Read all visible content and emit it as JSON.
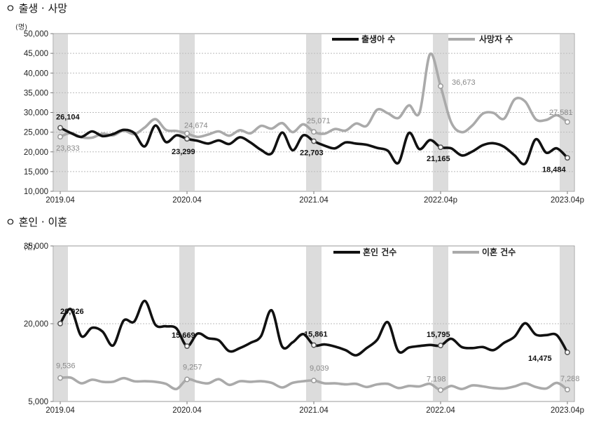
{
  "chart_data": [
    {
      "type": "line",
      "title": "ㅇ 출생 · 사망",
      "unit": "(명)",
      "ylim": [
        10000,
        50000
      ],
      "yticks": [
        10000,
        15000,
        20000,
        25000,
        30000,
        35000,
        40000,
        45000,
        50000
      ],
      "ytick_labels": [
        "10,000",
        "15,000",
        "20,000",
        "25,000",
        "30,000",
        "35,000",
        "40,000",
        "45,000",
        "50,000"
      ],
      "xtick_labels": [
        "2019.04",
        "2020.04",
        "2021.04",
        "2022.04p",
        "2023.04p"
      ],
      "grid": true,
      "legend_position": "top-right",
      "series": [
        {
          "name": "출생아 수",
          "color": "#111111",
          "values": [
            26104,
            24800,
            23800,
            25200,
            24000,
            24500,
            25600,
            24800,
            21400,
            26700,
            22500,
            24200,
            23299,
            22800,
            22100,
            22900,
            22000,
            23700,
            22400,
            20500,
            19600,
            24900,
            20400,
            24200,
            22703,
            21600,
            20900,
            22400,
            22100,
            21800,
            21000,
            20300,
            17200,
            24800,
            20700,
            23000,
            21165,
            20900,
            19100,
            20100,
            21700,
            22200,
            21300,
            19100,
            17000,
            23200,
            19800,
            20900,
            18484
          ]
        },
        {
          "name": "사망자 수",
          "color": "#aaaaaa",
          "values": [
            23833,
            24800,
            23700,
            23600,
            24600,
            24200,
            25400,
            24500,
            26200,
            28300,
            25600,
            25300,
            24674,
            23800,
            24400,
            25200,
            24100,
            25500,
            24700,
            26600,
            25900,
            27300,
            25000,
            27000,
            25071,
            24600,
            25800,
            25400,
            27200,
            26600,
            30700,
            29800,
            28600,
            31800,
            29900,
            44800,
            36673,
            27500,
            25000,
            26700,
            29700,
            29900,
            28400,
            33300,
            32800,
            28300,
            28100,
            29300,
            27581
          ]
        }
      ],
      "data_labels": [
        {
          "series": 0,
          "index": 0,
          "text": "26,104"
        },
        {
          "series": 0,
          "index": 12,
          "text": "23,299"
        },
        {
          "series": 0,
          "index": 24,
          "text": "22,703"
        },
        {
          "series": 0,
          "index": 36,
          "text": "21,165"
        },
        {
          "series": 0,
          "index": 48,
          "text": "18,484"
        },
        {
          "series": 1,
          "index": 0,
          "text": "23,833"
        },
        {
          "series": 1,
          "index": 12,
          "text": "24,674"
        },
        {
          "series": 1,
          "index": 24,
          "text": "25,071"
        },
        {
          "series": 1,
          "index": 36,
          "text": "36,673"
        },
        {
          "series": 1,
          "index": 48,
          "text": "27,581"
        }
      ]
    },
    {
      "type": "line",
      "title": "ㅇ 혼인 · 이혼",
      "unit": "(건)",
      "ylim": [
        5000,
        35000
      ],
      "yticks": [
        5000,
        20000,
        35000
      ],
      "ytick_labels": [
        "5,000",
        "20,000",
        "35,000"
      ],
      "xtick_labels": [
        "2019.04",
        "2020.04",
        "2021.04",
        "2022.04",
        "2023.04p"
      ],
      "grid": true,
      "legend_position": "top-right",
      "series": [
        {
          "name": "혼인 건수",
          "color": "#111111",
          "values": [
            20026,
            22800,
            17600,
            19200,
            18500,
            15800,
            20600,
            20400,
            24400,
            19800,
            19500,
            19100,
            15669,
            18100,
            17200,
            16800,
            14700,
            15300,
            16300,
            17600,
            22600,
            15600,
            16400,
            18000,
            15861,
            16000,
            15600,
            14900,
            13900,
            15300,
            16900,
            20300,
            14700,
            15400,
            15700,
            15900,
            15795,
            17100,
            15500,
            15300,
            15500,
            14900,
            16300,
            17500,
            20100,
            17900,
            17800,
            17800,
            14475
          ]
        },
        {
          "name": "이혼 건수",
          "color": "#aaaaaa",
          "values": [
            9536,
            9600,
            8500,
            9200,
            8800,
            8800,
            9500,
            8900,
            8900,
            8800,
            8400,
            7400,
            9257,
            8800,
            8500,
            9300,
            8200,
            8900,
            8800,
            8900,
            8600,
            7700,
            8600,
            8900,
            9039,
            8500,
            8500,
            8300,
            8400,
            7800,
            8300,
            8400,
            7600,
            8000,
            7900,
            8400,
            7198,
            8000,
            7400,
            8100,
            7900,
            7600,
            7500,
            7900,
            8500,
            7800,
            7500,
            8600,
            7288
          ]
        }
      ],
      "data_labels": [
        {
          "series": 0,
          "index": 0,
          "text": "20,026"
        },
        {
          "series": 0,
          "index": 12,
          "text": "15,669"
        },
        {
          "series": 0,
          "index": 24,
          "text": "15,861"
        },
        {
          "series": 0,
          "index": 36,
          "text": "15,795"
        },
        {
          "series": 0,
          "index": 48,
          "text": "14,475"
        },
        {
          "series": 1,
          "index": 0,
          "text": "9,536"
        },
        {
          "series": 1,
          "index": 12,
          "text": "9,257"
        },
        {
          "series": 1,
          "index": 24,
          "text": "9,039"
        },
        {
          "series": 1,
          "index": 36,
          "text": "7,198"
        },
        {
          "series": 1,
          "index": 48,
          "text": "7,288"
        }
      ]
    }
  ]
}
